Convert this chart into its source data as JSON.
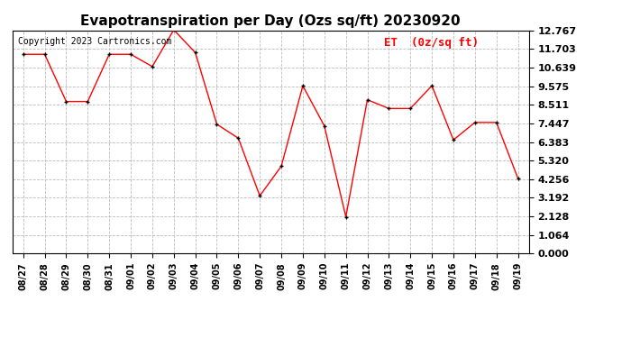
{
  "title": "Evapotranspiration per Day (Ozs sq/ft) 20230920",
  "copyright": "Copyright 2023 Cartronics.com",
  "legend_label": "ET  (0z/sq ft)",
  "dates": [
    "08/27",
    "08/28",
    "08/29",
    "08/30",
    "08/31",
    "09/01",
    "09/02",
    "09/03",
    "09/04",
    "09/05",
    "09/06",
    "09/07",
    "09/08",
    "09/09",
    "09/10",
    "09/11",
    "09/12",
    "09/13",
    "09/14",
    "09/15",
    "09/16",
    "09/17",
    "09/18",
    "09/19"
  ],
  "values": [
    11.4,
    11.4,
    8.7,
    8.7,
    11.4,
    11.4,
    10.7,
    12.8,
    11.5,
    7.4,
    6.6,
    3.3,
    5.0,
    9.6,
    7.3,
    2.1,
    8.8,
    8.3,
    8.3,
    9.6,
    6.5,
    7.5,
    7.5,
    4.3
  ],
  "yticks": [
    0.0,
    1.064,
    2.128,
    3.192,
    4.256,
    5.32,
    6.383,
    7.447,
    8.511,
    9.575,
    10.639,
    11.703,
    12.767
  ],
  "ylim": [
    0.0,
    12.767
  ],
  "line_color": "red",
  "marker_color": "black",
  "grid_color": "#bbbbbb",
  "bg_color": "#ffffff",
  "title_fontsize": 11,
  "copyright_fontsize": 7,
  "legend_fontsize": 9,
  "tick_fontsize": 7,
  "ytick_fontsize": 8
}
